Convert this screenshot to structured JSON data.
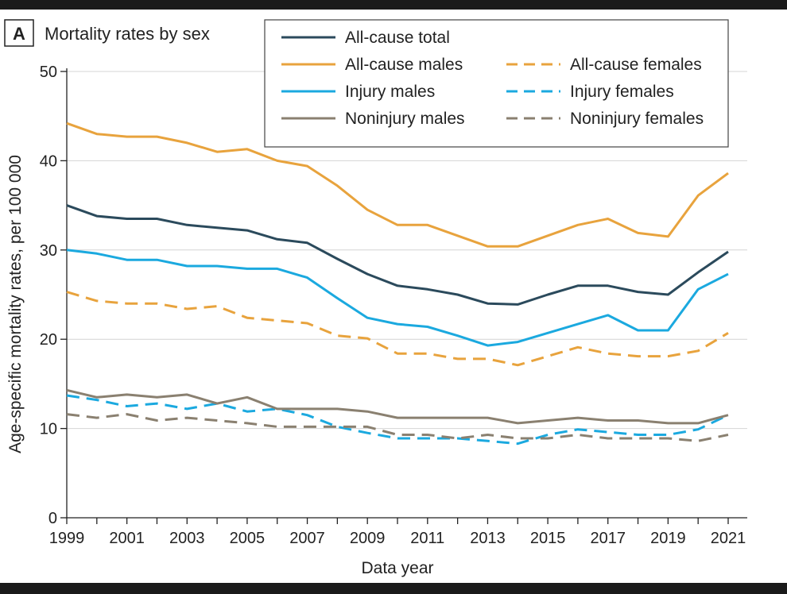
{
  "chart_data": {
    "type": "line",
    "panel_letter": "A",
    "title": "Mortality rates by sex",
    "xlabel": "Data year",
    "ylabel": "Age-specific mortality rates, per 100 000",
    "xlim": [
      1999,
      2021
    ],
    "ylim": [
      0,
      50
    ],
    "yticks": [
      0,
      10,
      20,
      30,
      40,
      50
    ],
    "xticks": [
      1999,
      2001,
      2003,
      2005,
      2007,
      2009,
      2011,
      2013,
      2015,
      2017,
      2019,
      2021
    ],
    "grid": "horizontal",
    "legend_position": "top-right",
    "x": [
      1999,
      2000,
      2001,
      2002,
      2003,
      2004,
      2005,
      2006,
      2007,
      2008,
      2009,
      2010,
      2011,
      2012,
      2013,
      2014,
      2015,
      2016,
      2017,
      2018,
      2019,
      2020,
      2021
    ],
    "series": [
      {
        "name": "All-cause total",
        "color": "#2b4a5c",
        "style": "solid",
        "values": [
          35.0,
          33.8,
          33.5,
          33.5,
          32.8,
          32.5,
          32.2,
          31.2,
          30.8,
          29.0,
          27.3,
          26.0,
          25.6,
          25.0,
          24.0,
          23.9,
          25.0,
          26.0,
          26.0,
          25.3,
          25.0,
          27.5,
          29.8
        ]
      },
      {
        "name": "All-cause males",
        "color": "#e8a33d",
        "style": "solid",
        "values": [
          44.2,
          43.0,
          42.7,
          42.7,
          42.0,
          41.0,
          41.3,
          40.0,
          39.4,
          37.2,
          34.5,
          32.8,
          32.8,
          31.6,
          30.4,
          30.4,
          31.6,
          32.8,
          33.5,
          31.9,
          31.5,
          36.1,
          38.6
        ]
      },
      {
        "name": "All-cause females",
        "color": "#e8a33d",
        "style": "dashed",
        "values": [
          25.3,
          24.3,
          24.0,
          24.0,
          23.4,
          23.7,
          22.4,
          22.1,
          21.8,
          20.4,
          20.1,
          18.4,
          18.4,
          17.8,
          17.8,
          17.1,
          18.1,
          19.1,
          18.4,
          18.1,
          18.1,
          18.7,
          20.7
        ]
      },
      {
        "name": "Injury males",
        "color": "#1ba9df",
        "style": "solid",
        "values": [
          30.0,
          29.6,
          28.9,
          28.9,
          28.2,
          28.2,
          27.9,
          27.9,
          26.9,
          24.6,
          22.4,
          21.7,
          21.4,
          20.4,
          19.3,
          19.7,
          20.7,
          21.7,
          22.7,
          21.0,
          21.0,
          25.6,
          27.3
        ]
      },
      {
        "name": "Injury females",
        "color": "#1ba9df",
        "style": "dashed",
        "values": [
          13.7,
          13.2,
          12.5,
          12.8,
          12.2,
          12.8,
          11.9,
          12.2,
          11.5,
          10.2,
          9.5,
          8.9,
          8.9,
          8.9,
          8.6,
          8.3,
          9.3,
          9.9,
          9.6,
          9.3,
          9.3,
          9.9,
          11.5
        ]
      },
      {
        "name": "Noninjury males",
        "color": "#8a8070",
        "style": "solid",
        "values": [
          14.3,
          13.5,
          13.8,
          13.5,
          13.8,
          12.8,
          13.5,
          12.2,
          12.2,
          12.2,
          11.9,
          11.2,
          11.2,
          11.2,
          11.2,
          10.6,
          10.9,
          11.2,
          10.9,
          10.9,
          10.6,
          10.6,
          11.5
        ]
      },
      {
        "name": "Noninjury females",
        "color": "#8a8070",
        "style": "dashed",
        "values": [
          11.6,
          11.2,
          11.6,
          10.9,
          11.2,
          10.9,
          10.6,
          10.2,
          10.2,
          10.2,
          10.2,
          9.3,
          9.3,
          8.9,
          9.3,
          8.9,
          8.9,
          9.3,
          8.9,
          8.9,
          8.9,
          8.6,
          9.3
        ]
      }
    ]
  }
}
